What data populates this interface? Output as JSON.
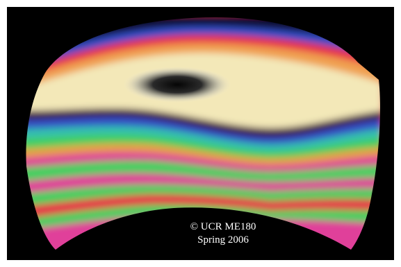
{
  "caption": {
    "line1": "© UCR ME180",
    "line2": "Spring 2006"
  },
  "colors": {
    "background": "#000000",
    "frame": "#ffffff",
    "caption_text": "#ffffff",
    "fringe_white": "#f6f0dc",
    "fringe_cream": "#f3e8b8",
    "fringe_orange": "#f0a050",
    "fringe_red": "#e8304a",
    "fringe_magenta": "#e0409a",
    "fringe_blue": "#3050c8",
    "fringe_cyan": "#30c0b0",
    "fringe_green": "#40d060",
    "fringe_yellow": "#e0e060",
    "fringe_black": "#0c0c0c"
  }
}
